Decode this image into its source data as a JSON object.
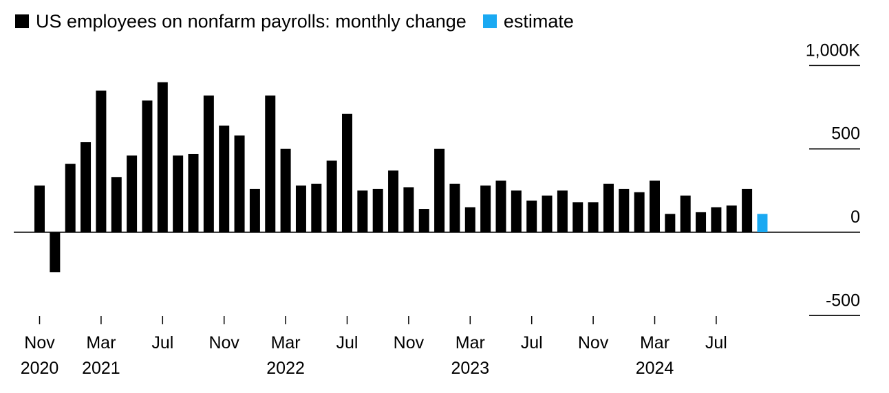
{
  "legend": {
    "items": [
      {
        "label": "US employees on nonfarm payrolls: monthly change",
        "color": "#000000"
      },
      {
        "label": "estimate",
        "color": "#1aa9f2"
      }
    ]
  },
  "chart_data": {
    "type": "bar",
    "title": "",
    "xlabel": "",
    "ylabel": "",
    "ylim": [
      -500,
      1000
    ],
    "grid": false,
    "legend_placement": "top-left",
    "colors": {
      "actual": "#000000",
      "estimate": "#1aa9f2",
      "axis": "#000000"
    },
    "yticks": [
      {
        "value": 1000,
        "label": "1,000K"
      },
      {
        "value": 500,
        "label": "500"
      },
      {
        "value": 0,
        "label": "0"
      },
      {
        "value": -500,
        "label": "-500"
      }
    ],
    "categories": [
      "2020-11",
      "2020-12",
      "2021-01",
      "2021-02",
      "2021-03",
      "2021-04",
      "2021-05",
      "2021-06",
      "2021-07",
      "2021-08",
      "2021-09",
      "2021-10",
      "2021-11",
      "2021-12",
      "2022-01",
      "2022-02",
      "2022-03",
      "2022-04",
      "2022-05",
      "2022-06",
      "2022-07",
      "2022-08",
      "2022-09",
      "2022-10",
      "2022-11",
      "2022-12",
      "2023-01",
      "2023-02",
      "2023-03",
      "2023-04",
      "2023-05",
      "2023-06",
      "2023-07",
      "2023-08",
      "2023-09",
      "2023-10",
      "2023-11",
      "2023-12",
      "2024-01",
      "2024-02",
      "2024-03",
      "2024-04",
      "2024-05",
      "2024-06",
      "2024-07",
      "2024-08",
      "2024-09",
      "2024-10"
    ],
    "series": [
      {
        "name": "US employees on nonfarm payrolls: monthly change",
        "values": [
          280,
          -240,
          410,
          540,
          850,
          330,
          460,
          790,
          900,
          460,
          470,
          820,
          640,
          580,
          260,
          820,
          500,
          280,
          290,
          430,
          710,
          250,
          260,
          370,
          270,
          140,
          500,
          290,
          150,
          280,
          310,
          250,
          190,
          220,
          250,
          180,
          180,
          290,
          260,
          240,
          310,
          110,
          220,
          120,
          150,
          160,
          260,
          null
        ]
      },
      {
        "name": "estimate",
        "values": [
          null,
          null,
          null,
          null,
          null,
          null,
          null,
          null,
          null,
          null,
          null,
          null,
          null,
          null,
          null,
          null,
          null,
          null,
          null,
          null,
          null,
          null,
          null,
          null,
          null,
          null,
          null,
          null,
          null,
          null,
          null,
          null,
          null,
          null,
          null,
          null,
          null,
          null,
          null,
          null,
          null,
          null,
          null,
          null,
          null,
          null,
          null,
          110
        ]
      }
    ],
    "xticks": [
      {
        "index": 0,
        "month": "Nov",
        "year": "2020"
      },
      {
        "index": 4,
        "month": "Mar",
        "year": "2021"
      },
      {
        "index": 8,
        "month": "Jul",
        "year": ""
      },
      {
        "index": 12,
        "month": "Nov",
        "year": ""
      },
      {
        "index": 16,
        "month": "Mar",
        "year": "2022"
      },
      {
        "index": 20,
        "month": "Jul",
        "year": ""
      },
      {
        "index": 24,
        "month": "Nov",
        "year": ""
      },
      {
        "index": 28,
        "month": "Mar",
        "year": "2023"
      },
      {
        "index": 32,
        "month": "Jul",
        "year": ""
      },
      {
        "index": 36,
        "month": "Nov",
        "year": ""
      },
      {
        "index": 40,
        "month": "Mar",
        "year": "2024"
      },
      {
        "index": 44,
        "month": "Jul",
        "year": ""
      }
    ]
  }
}
